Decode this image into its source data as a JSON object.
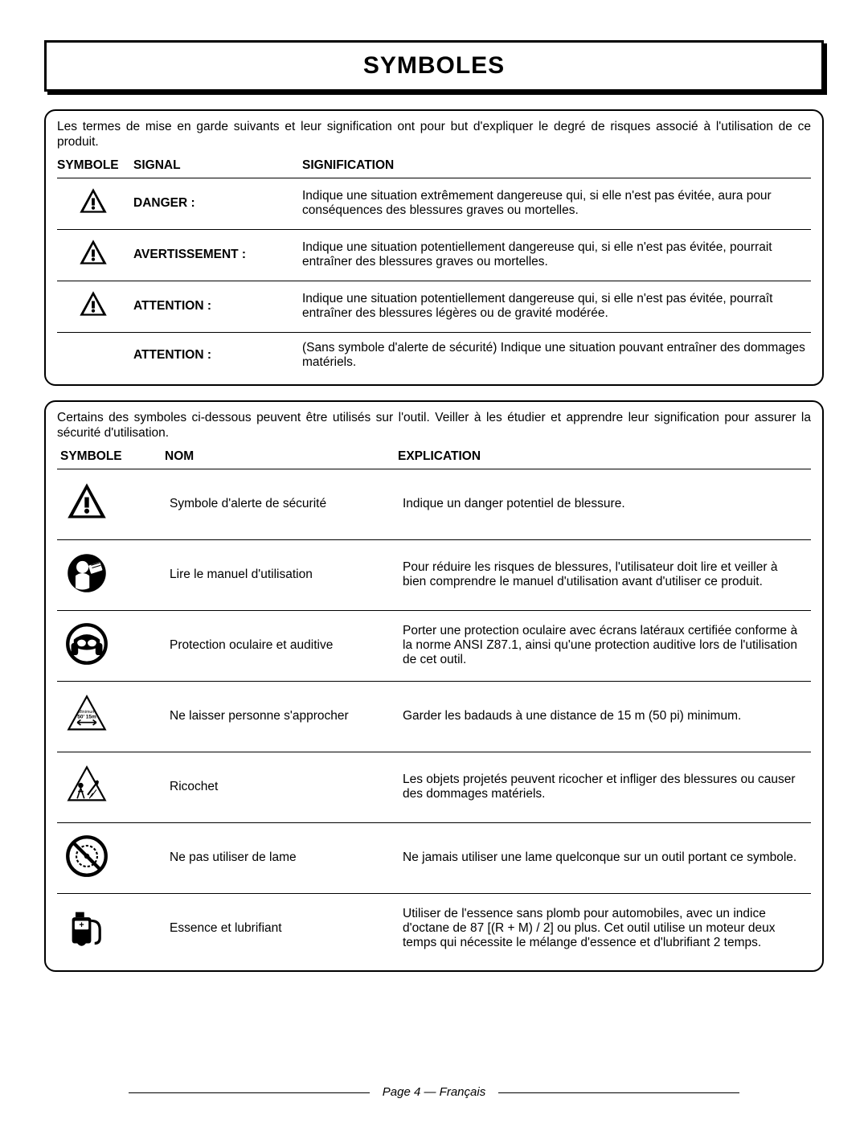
{
  "title": "SYMBOLES",
  "intro1": "Les termes de mise en garde suivants et leur signification ont pour but d'expliquer le degré de risques associé à l'utilisation de ce produit.",
  "headers1": {
    "symbole": "SYMBOLE",
    "signal": "SIGNAL",
    "signification": "SIGNIFICATION"
  },
  "signals": [
    {
      "hasIcon": true,
      "signal": "DANGER :",
      "meaning": "Indique une situation extrêmement dangereuse qui, si elle n'est pas évitée, aura pour conséquences des blessures graves ou mortelles."
    },
    {
      "hasIcon": true,
      "signal": "AVERTISSEMENT :",
      "meaning": "Indique une situation potentiellement dangereuse qui, si elle n'est pas évitée, pourrait entraîner des blessures graves ou mortelles."
    },
    {
      "hasIcon": true,
      "signal": "ATTENTION :",
      "meaning": "Indique une situation potentiellement dangereuse qui, si elle n'est pas évitée, pourraît entraîner des blessures légères ou de gravité modérée."
    },
    {
      "hasIcon": false,
      "signal": "ATTENTION :",
      "meaning": "(Sans symbole d'alerte de sécurité) Indique une situation pouvant entraîner des dommages matériels."
    }
  ],
  "intro2": "Certains des symboles ci-dessous peuvent être utilisés sur l'outil. Veiller à les étudier et apprendre leur signification pour assurer la sécurité d'utilisation.",
  "headers2": {
    "symbole": "SYMBOLE",
    "nom": "NOM",
    "explication": "EXPLICATION"
  },
  "symbols": [
    {
      "icon": "alert",
      "nom": "Symbole d'alerte de sécurité",
      "exp": "Indique un danger potentiel de blessure."
    },
    {
      "icon": "manual",
      "nom": "Lire le manuel d'utilisation",
      "exp": "Pour réduire les risques de blessures, l'utilisateur doit lire et veiller à bien comprendre le manuel d'utilisation avant d'utiliser ce produit."
    },
    {
      "icon": "eyeear",
      "nom": "Protection oculaire et auditive",
      "exp": "Porter une protection oculaire avec écrans latéraux certifiée conforme à la norme ANSI Z87.1, ainsi qu'une protection auditive lors de l'utilisation de cet outil."
    },
    {
      "icon": "bystander",
      "nom": "Ne laisser personne s'approcher",
      "exp": "Garder les badauds à une distance de 15 m (50 pi) minimum."
    },
    {
      "icon": "ricochet",
      "nom": "Ricochet",
      "exp": "Les objets projetés peuvent ricocher et infliger des blessures ou causer des dommages matériels."
    },
    {
      "icon": "noblade",
      "nom": "Ne pas utiliser de lame",
      "exp": "Ne jamais utiliser une lame quelconque sur un outil portant ce symbole."
    },
    {
      "icon": "fuel",
      "nom": "Essence et lubrifiant",
      "exp": "Utiliser de l'essence sans plomb pour automobiles, avec un indice d'octane de 87 [(R + M) / 2] ou plus. Cet outil utilise un moteur deux temps qui nécessite le mélange d'essence et d'lubrifiant 2 temps."
    }
  ],
  "footer": "Page 4 — Français"
}
